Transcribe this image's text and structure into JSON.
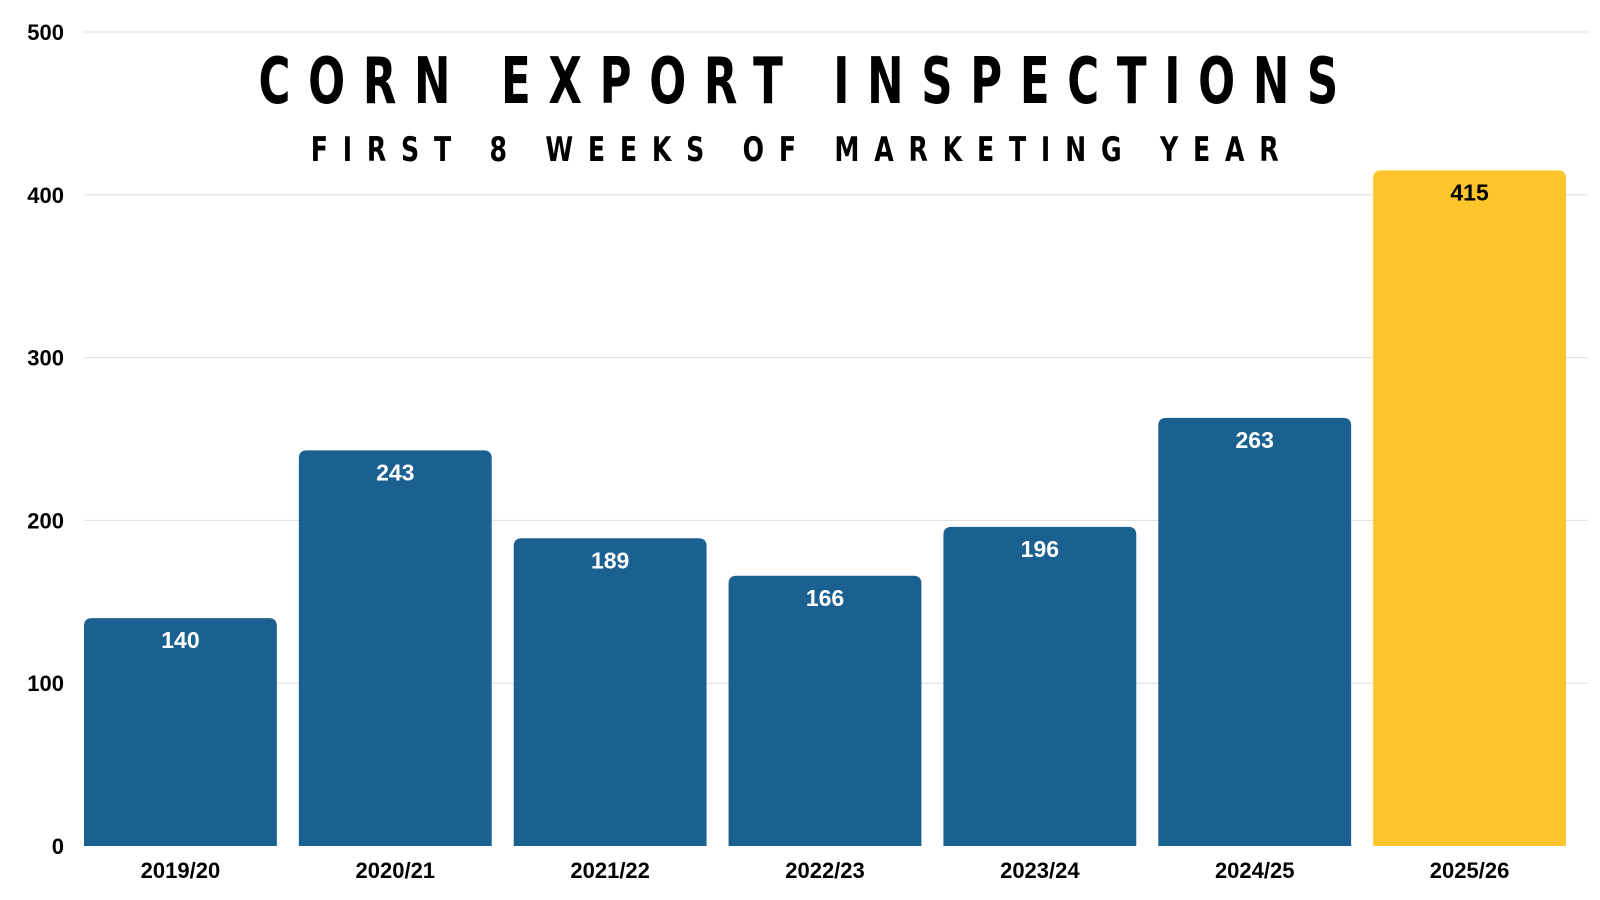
{
  "chart_data": {
    "type": "bar",
    "title": "CORN EXPORT INSPECTIONS",
    "subtitle": "FIRST 8 WEEKS OF MARKETING YEAR",
    "xlabel": "",
    "ylabel": "",
    "categories": [
      "2019/20",
      "2020/21",
      "2021/22",
      "2022/23",
      "2023/24",
      "2024/25",
      "2025/26"
    ],
    "values": [
      140,
      243,
      189,
      166,
      196,
      263,
      415
    ],
    "value_labels": [
      "140",
      "243",
      "189",
      "166",
      "196",
      "263",
      "415"
    ],
    "ylim": [
      0,
      500
    ],
    "yticks": [
      "0",
      "100",
      "200",
      "300",
      "400",
      "500"
    ],
    "grid": true,
    "legend": "none",
    "colors": {
      "bar": "#1a6090",
      "highlight_bar": "#fdc52b",
      "label_on_bar": "#ffffff",
      "label_on_highlight": "#000000",
      "gridline": "#dddddd"
    },
    "highlight_index": 6
  }
}
